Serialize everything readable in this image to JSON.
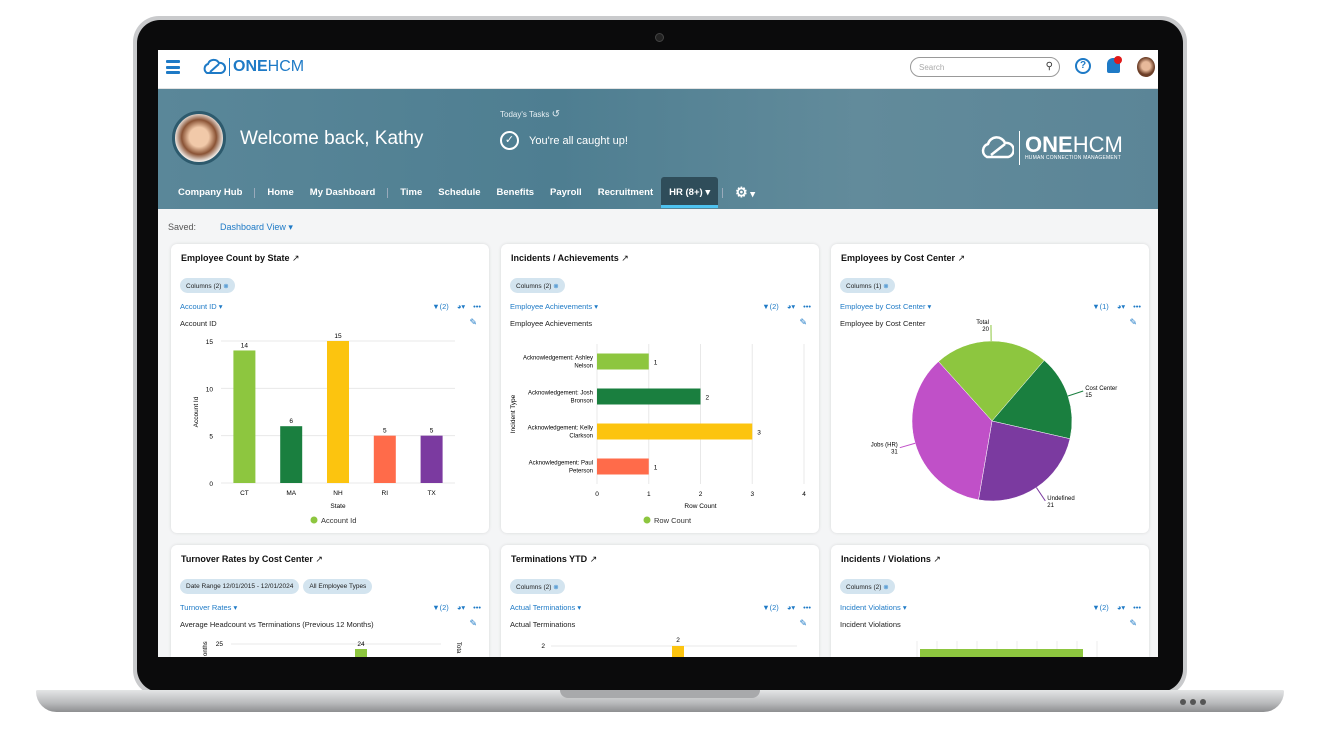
{
  "app": {
    "logo_one": "ONE",
    "logo_hcm": "HCM",
    "tagline": "HUMAN CONNECTION MANAGEMENT"
  },
  "topbar": {
    "search_placeholder": "Search",
    "help": "?"
  },
  "banner": {
    "welcome": "Welcome back, Kathy",
    "tasks_label": "Today's Tasks",
    "tasks_message": "You're all caught up!"
  },
  "nav": {
    "items": [
      "Company Hub",
      "Home",
      "My Dashboard",
      "Time",
      "Schedule",
      "Benefits",
      "Payroll",
      "Recruitment",
      "HR (8+)"
    ],
    "active": "HR (8+)"
  },
  "saved": {
    "label": "Saved:",
    "value": "Dashboard View"
  },
  "colors": {
    "accent": "#1e7ac6",
    "banner": "#4e7e91",
    "light_green": "#8dc63f",
    "dark_green": "#1a7f3f",
    "yellow": "#fcc40f",
    "orange": "#ff6b4a",
    "purple": "#7b3aa0",
    "magenta": "#c050c8"
  },
  "cards": [
    {
      "title": "Employee Count by State",
      "chips": [
        "Columns (2)"
      ],
      "dropdown": "Account ID",
      "filter": "(2)",
      "subtitle": "Account ID"
    },
    {
      "title": "Incidents / Achievements",
      "chips": [
        "Columns (2)"
      ],
      "dropdown": "Employee Achievements",
      "filter": "(2)",
      "subtitle": "Employee Achievements"
    },
    {
      "title": "Employees by Cost Center",
      "chips": [
        "Columns (1)"
      ],
      "dropdown": "Employee by Cost Center",
      "filter": "(1)",
      "subtitle": "Employee by Cost Center"
    },
    {
      "title": "Turnover Rates by Cost Center",
      "chips": [
        "Date Range 12/01/2015 - 12/01/2024",
        "All Employee Types"
      ],
      "dropdown": "Turnover Rates",
      "filter": "(2)",
      "subtitle": "Average Headcount vs Terminations (Previous 12 Months)"
    },
    {
      "title": "Terminations YTD",
      "chips": [
        "Columns (2)"
      ],
      "dropdown": "Actual Terminations",
      "filter": "(2)",
      "subtitle": "Actual Terminations"
    },
    {
      "title": "Incidents / Violations",
      "chips": [
        "Columns (2)"
      ],
      "dropdown": "Incident Violations",
      "filter": "(2)",
      "subtitle": "Incident Violations"
    }
  ],
  "chart_data": [
    {
      "type": "bar",
      "categories": [
        "CT",
        "MA",
        "NH",
        "RI",
        "TX"
      ],
      "values": [
        14,
        6,
        15,
        5,
        5
      ],
      "colors": [
        "#8dc63f",
        "#1a7f3f",
        "#fcc40f",
        "#ff6b4a",
        "#7b3aa0"
      ],
      "xlabel": "State",
      "ylabel": "Account Id",
      "ylim": [
        0,
        15
      ],
      "yticks": [
        0,
        5,
        10,
        15
      ],
      "legend": "Account Id",
      "grid": true
    },
    {
      "type": "bar",
      "orientation": "horizontal",
      "categories": [
        "Acknowledgement: Ashley Nelson",
        "Acknowledgement: Josh Bronson",
        "Acknowledgement: Kelly Clarkson",
        "Acknowledgement: Paul Peterson"
      ],
      "values": [
        1,
        2,
        3,
        1
      ],
      "colors": [
        "#8dc63f",
        "#1a7f3f",
        "#fcc40f",
        "#ff6b4a"
      ],
      "xlabel": "Row Count",
      "ylabel": "Incident Type",
      "xlim": [
        0,
        4
      ],
      "xticks": [
        0,
        1,
        2,
        3,
        4
      ],
      "legend": "Row Count",
      "grid": true
    },
    {
      "type": "pie",
      "slices": [
        {
          "label": "Total",
          "value": 20,
          "color": "#8dc63f"
        },
        {
          "label": "Cost Center",
          "value": 15,
          "color": "#1a7f3f"
        },
        {
          "label": "Undefined",
          "value": 21,
          "color": "#7b3aa0"
        },
        {
          "label": "Jobs (HR)",
          "value": 31,
          "color": "#c050c8"
        }
      ]
    },
    {
      "type": "bar",
      "partial": true,
      "ytick_top": "25",
      "value_label": "24",
      "ylabel": "onths",
      "y2label": "Tota"
    },
    {
      "type": "bar",
      "partial": true,
      "ytick_top": "2",
      "value_label": "2"
    },
    {
      "type": "bar",
      "orientation": "horizontal",
      "partial": true
    }
  ]
}
